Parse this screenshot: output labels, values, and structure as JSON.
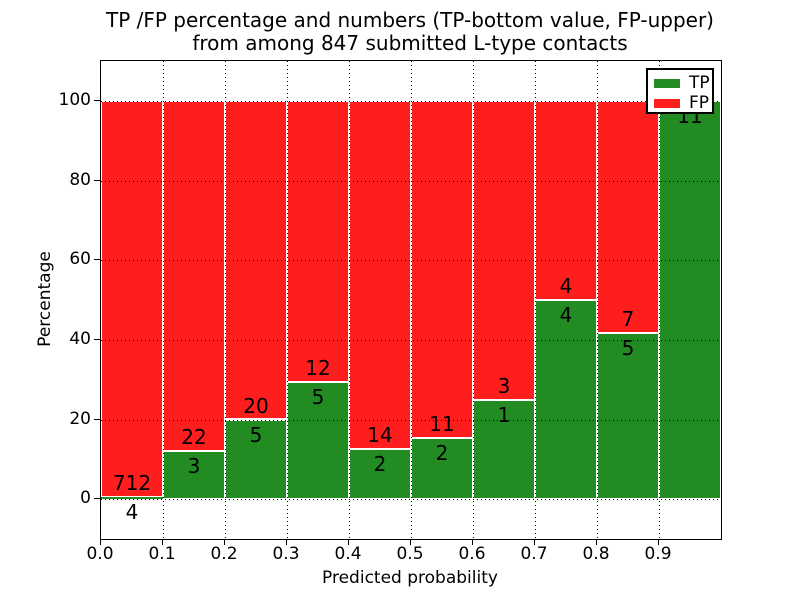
{
  "figure": {
    "title_line1": "TP /FP percentage and numbers (TP-bottom value, FP-upper)",
    "title_line2": "from among 847 submitted L-type contacts",
    "xlabel": "Predicted probability",
    "ylabel": "Percentage"
  },
  "legend": {
    "position": "upper right",
    "items": [
      {
        "label": "TP",
        "color": "#228b22"
      },
      {
        "label": "FP",
        "color": "#ff1e1e"
      }
    ]
  },
  "colors": {
    "tp": "#228b22",
    "fp": "#ff1e1e",
    "bar_edge": "#ffffff",
    "grid": "#000000",
    "background": "#ffffff"
  },
  "chart_data": {
    "type": "bar",
    "stacked": true,
    "normalized": "percent_of_bin_total",
    "title": "TP /FP percentage and numbers (TP-bottom value, FP-upper) from among 847 submitted L-type contacts",
    "xlabel": "Predicted probability",
    "ylabel": "Percentage",
    "total_contacts": 847,
    "grid": "dotted",
    "legend_position": "upper right",
    "xlim": [
      0.0,
      1.0
    ],
    "ylim": [
      -10,
      110
    ],
    "x_bins": [
      [
        0.0,
        0.1
      ],
      [
        0.1,
        0.2
      ],
      [
        0.2,
        0.3
      ],
      [
        0.3,
        0.4
      ],
      [
        0.4,
        0.5
      ],
      [
        0.5,
        0.6
      ],
      [
        0.6,
        0.7
      ],
      [
        0.7,
        0.8
      ],
      [
        0.8,
        0.9
      ],
      [
        0.9,
        1.0
      ]
    ],
    "xtick_labels": [
      "0.0",
      "0.1",
      "0.2",
      "0.3",
      "0.4",
      "0.5",
      "0.6",
      "0.7",
      "0.8",
      "0.9"
    ],
    "ytick_values": [
      0,
      20,
      40,
      60,
      80,
      100
    ],
    "ytick_labels": [
      "0",
      "20",
      "40",
      "60",
      "80",
      "100"
    ],
    "series": [
      {
        "name": "TP",
        "color": "#228b22",
        "counts": [
          4,
          3,
          5,
          5,
          2,
          2,
          1,
          4,
          5,
          11
        ]
      },
      {
        "name": "FP",
        "color": "#ff1e1e",
        "counts": [
          712,
          22,
          20,
          12,
          14,
          11,
          3,
          4,
          7,
          0
        ]
      }
    ],
    "tp_percent_of_bin": [
      0.6,
      12.0,
      20.0,
      29.4,
      12.5,
      15.4,
      25.0,
      50.0,
      41.7,
      100.0
    ]
  }
}
